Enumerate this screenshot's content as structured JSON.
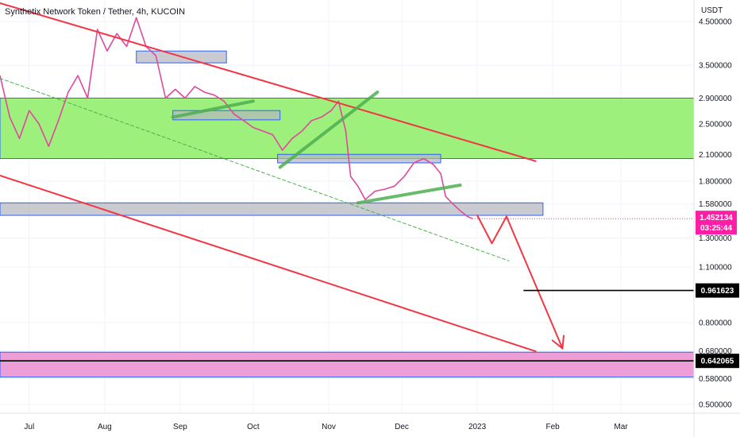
{
  "chart_data": {
    "type": "line",
    "title": "Synthetix Network Token / Tether, 4h, KUCOIN",
    "currency": "USDT",
    "y_scale": "log",
    "ylim": [
      0.48,
      5.0
    ],
    "x_range": [
      "2022-06-19",
      "2023-03-31"
    ],
    "y_ticks": [
      {
        "label": "4.500000",
        "value": 4.5
      },
      {
        "label": "3.500000",
        "value": 3.5
      },
      {
        "label": "2.900000",
        "value": 2.9
      },
      {
        "label": "2.500000",
        "value": 2.5
      },
      {
        "label": "2.100000",
        "value": 2.1
      },
      {
        "label": "1.800000",
        "value": 1.8
      },
      {
        "label": "1.580000",
        "value": 1.58
      },
      {
        "label": "1.300000",
        "value": 1.3
      },
      {
        "label": "1.100000",
        "value": 1.1
      },
      {
        "label": "0.800000",
        "value": 0.8
      },
      {
        "label": "0.680000",
        "value": 0.68
      },
      {
        "label": "0.580000",
        "value": 0.58
      },
      {
        "label": "0.500000",
        "value": 0.5
      }
    ],
    "x_ticks": [
      {
        "label": "Jul",
        "date": "2022-07-01"
      },
      {
        "label": "Aug",
        "date": "2022-08-01"
      },
      {
        "label": "Sep",
        "date": "2022-09-01"
      },
      {
        "label": "Oct",
        "date": "2022-10-01"
      },
      {
        "label": "Nov",
        "date": "2022-11-01"
      },
      {
        "label": "Dec",
        "date": "2022-12-01"
      },
      {
        "label": "2023",
        "date": "2023-01-01"
      },
      {
        "label": "Feb",
        "date": "2023-02-01"
      },
      {
        "label": "Mar",
        "date": "2023-03-01"
      }
    ],
    "series": [
      {
        "color": "#e0479e",
        "points": [
          [
            "2022-06-19",
            3.3
          ],
          [
            "2022-06-23",
            2.6
          ],
          [
            "2022-06-27",
            2.3
          ],
          [
            "2022-07-01",
            2.7
          ],
          [
            "2022-07-05",
            2.5
          ],
          [
            "2022-07-09",
            2.2
          ],
          [
            "2022-07-13",
            2.55
          ],
          [
            "2022-07-17",
            3.0
          ],
          [
            "2022-07-21",
            3.3
          ],
          [
            "2022-07-25",
            2.9
          ],
          [
            "2022-07-29",
            4.3
          ],
          [
            "2022-08-02",
            3.8
          ],
          [
            "2022-08-06",
            4.2
          ],
          [
            "2022-08-10",
            3.9
          ],
          [
            "2022-08-14",
            4.6
          ],
          [
            "2022-08-18",
            3.9
          ],
          [
            "2022-08-22",
            3.7
          ],
          [
            "2022-08-26",
            2.9
          ],
          [
            "2022-08-30",
            3.05
          ],
          [
            "2022-09-03",
            2.9
          ],
          [
            "2022-09-07",
            3.1
          ],
          [
            "2022-09-11",
            3.0
          ],
          [
            "2022-09-15",
            2.95
          ],
          [
            "2022-09-19",
            2.85
          ],
          [
            "2022-09-23",
            2.65
          ],
          [
            "2022-09-27",
            2.55
          ],
          [
            "2022-10-01",
            2.45
          ],
          [
            "2022-10-05",
            2.4
          ],
          [
            "2022-10-09",
            2.35
          ],
          [
            "2022-10-13",
            2.15
          ],
          [
            "2022-10-17",
            2.3
          ],
          [
            "2022-10-21",
            2.4
          ],
          [
            "2022-10-25",
            2.55
          ],
          [
            "2022-10-29",
            2.6
          ],
          [
            "2022-11-02",
            2.7
          ],
          [
            "2022-11-05",
            2.85
          ],
          [
            "2022-11-08",
            2.4
          ],
          [
            "2022-11-10",
            1.85
          ],
          [
            "2022-11-13",
            1.75
          ],
          [
            "2022-11-16",
            1.62
          ],
          [
            "2022-11-20",
            1.7
          ],
          [
            "2022-11-24",
            1.72
          ],
          [
            "2022-11-28",
            1.75
          ],
          [
            "2022-12-02",
            1.85
          ],
          [
            "2022-12-06",
            2.0
          ],
          [
            "2022-12-10",
            2.05
          ],
          [
            "2022-12-14",
            1.98
          ],
          [
            "2022-12-17",
            1.88
          ],
          [
            "2022-12-19",
            1.65
          ],
          [
            "2022-12-22",
            1.58
          ],
          [
            "2022-12-25",
            1.52
          ],
          [
            "2022-12-28",
            1.47
          ],
          [
            "2022-12-30",
            1.452
          ]
        ]
      }
    ],
    "last_price": {
      "label": "1.452134",
      "timer": "03:25:44",
      "value": 1.452134,
      "color": "#ff1ea5"
    },
    "level_tags": [
      {
        "label": "0.961623",
        "value": 0.961623,
        "from": "2023-01-20"
      },
      {
        "label": "0.642065",
        "value": 0.642065,
        "from": "2022-06-19"
      }
    ],
    "zones": [
      {
        "name": "green-zone",
        "from": "2022-06-19",
        "to": "2023-03-31",
        "top": 2.9,
        "bottom": 2.05,
        "fill": "#9ef07c",
        "stroke": "#2962ff"
      },
      {
        "name": "pink-zone",
        "from": "2022-06-19",
        "to": "2023-03-31",
        "top": 0.675,
        "bottom": 0.585,
        "fill": "#ee9ed6",
        "stroke": "#2962ff"
      }
    ],
    "boxes": [
      {
        "from": "2022-08-14",
        "to": "2022-09-20",
        "top": 3.8,
        "bottom": 3.55
      },
      {
        "from": "2022-08-29",
        "to": "2022-10-12",
        "top": 2.7,
        "bottom": 2.56
      },
      {
        "from": "2022-10-11",
        "to": "2022-12-17",
        "top": 2.1,
        "bottom": 2.0
      },
      {
        "from": "2022-06-19",
        "to": "2023-01-28",
        "top": 1.59,
        "bottom": 1.48
      }
    ],
    "trendlines": [
      {
        "color": "#f23645",
        "width": 2,
        "points": [
          [
            "2022-06-19",
            5.0
          ],
          [
            "2023-01-25",
            2.02
          ]
        ]
      },
      {
        "color": "#f23645",
        "width": 2,
        "points": [
          [
            "2022-06-19",
            1.86
          ],
          [
            "2023-01-25",
            0.678
          ]
        ]
      },
      {
        "color": "#4caf50",
        "width": 4,
        "points": [
          [
            "2022-08-29",
            2.6
          ],
          [
            "2022-10-01",
            2.85
          ]
        ]
      },
      {
        "color": "#4caf50",
        "width": 4,
        "points": [
          [
            "2022-10-12",
            1.95
          ],
          [
            "2022-11-21",
            3.0
          ]
        ]
      },
      {
        "color": "#4caf50",
        "width": 4,
        "points": [
          [
            "2022-11-13",
            1.59
          ],
          [
            "2022-12-25",
            1.76
          ]
        ]
      },
      {
        "color": "#4caf50",
        "width": 1,
        "dash": true,
        "points": [
          [
            "2022-06-19",
            3.25
          ],
          [
            "2023-01-14",
            1.14
          ]
        ]
      },
      {
        "color": "#f23645",
        "width": 2,
        "points": [
          [
            "2023-01-01",
            1.48
          ],
          [
            "2023-01-07",
            1.26
          ],
          [
            "2023-01-13",
            1.47
          ],
          [
            "2023-02-05",
            0.69
          ]
        ]
      }
    ]
  }
}
